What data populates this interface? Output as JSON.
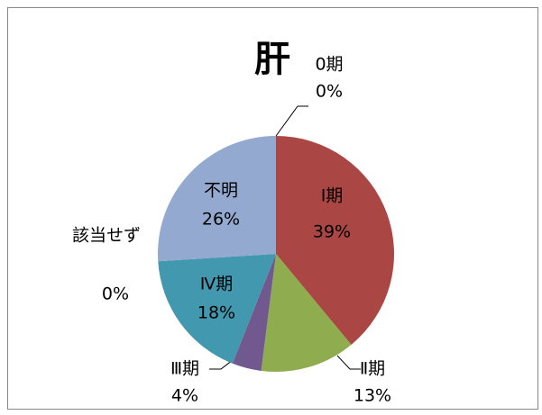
{
  "chart_data": {
    "type": "pie",
    "title": "肝",
    "categories": [
      "0期",
      "Ⅰ期",
      "Ⅱ期",
      "Ⅲ期",
      "Ⅳ期",
      "該当せず",
      "不明"
    ],
    "values": [
      0,
      39,
      13,
      4,
      18,
      0,
      26
    ],
    "value_labels": [
      "0%",
      "39%",
      "13%",
      "4%",
      "18%",
      "0%",
      "26%"
    ],
    "colors": [
      "#4f81bd",
      "#aa4643",
      "#8fad4f",
      "#71588f",
      "#4198af",
      "#db843d",
      "#93a9cf"
    ]
  }
}
